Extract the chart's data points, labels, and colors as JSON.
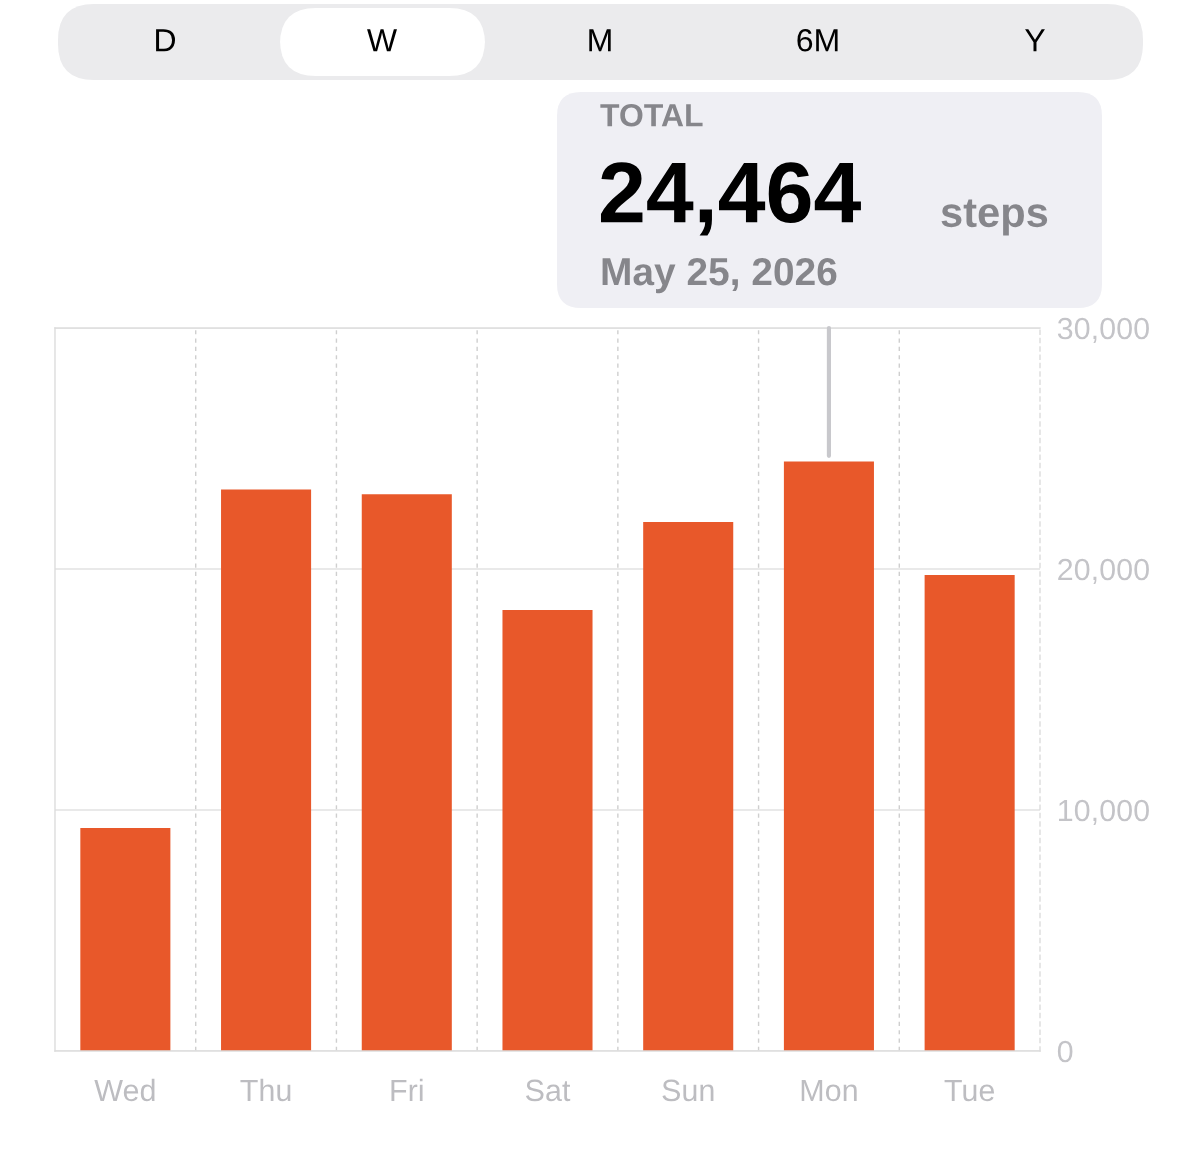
{
  "chart_data": {
    "type": "bar",
    "categories": [
      "Wed",
      "Thu",
      "Fri",
      "Sat",
      "Sun",
      "Mon",
      "Tue"
    ],
    "values": [
      9250,
      23300,
      23100,
      18300,
      21950,
      24464,
      19750
    ],
    "color": "#e8582a",
    "ylim": [
      0,
      30000
    ],
    "yticks": [
      {
        "value": 0,
        "label": "0"
      },
      {
        "value": 10000,
        "label": "10,000"
      },
      {
        "value": 20000,
        "label": "20,000"
      },
      {
        "value": 30000,
        "label": "30,000"
      }
    ],
    "grid": true,
    "annotations": [
      "D",
      "W",
      "M",
      "6M",
      "Y",
      "TOTAL",
      {
        "text": "24,464",
        "x": "Mon",
        "y": 24464
      },
      "steps",
      "May 25, 2026"
    ]
  }
}
